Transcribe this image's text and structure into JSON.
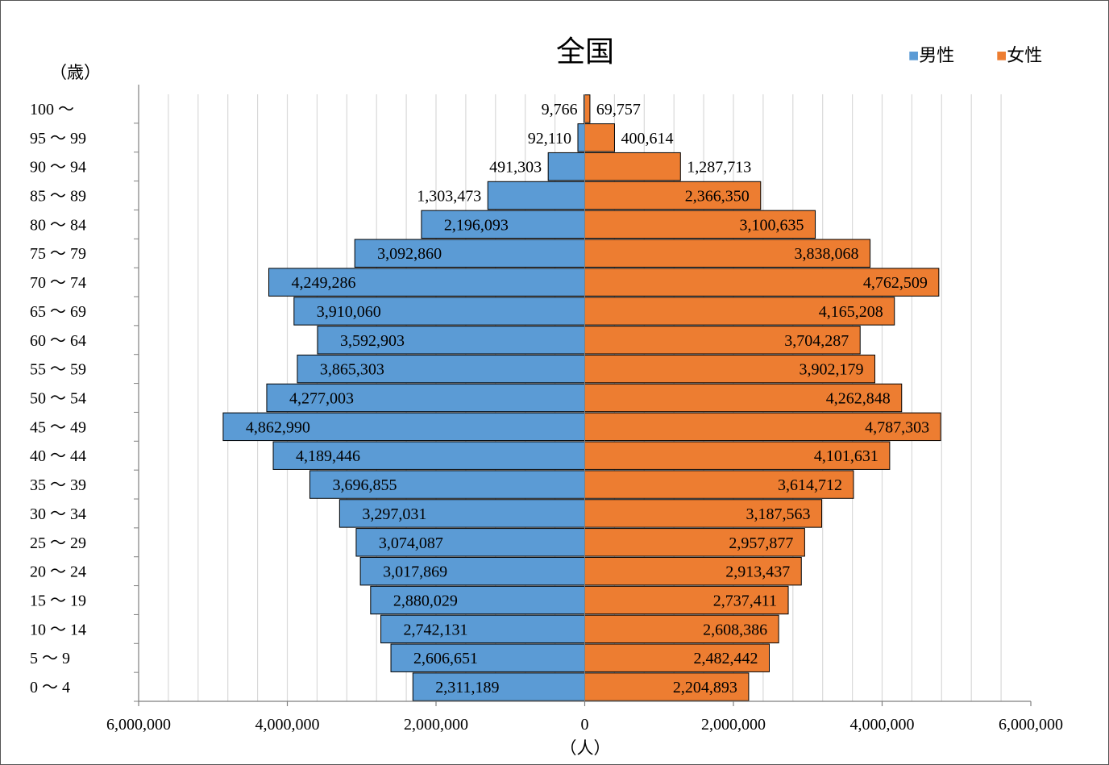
{
  "chart_data": {
    "type": "bar",
    "orientation": "horizontal",
    "layout": "population-pyramid",
    "title": "全国",
    "y_unit_label": "（歳）",
    "x_unit_label": "（人）",
    "xlim": [
      -6000000,
      6000000
    ],
    "x_ticks": [
      -6000000,
      -4000000,
      -2000000,
      0,
      2000000,
      4000000,
      6000000
    ],
    "x_tick_labels": [
      "6,000,000",
      "4,000,000",
      "2,000,000",
      "0",
      "2,000,000",
      "4,000,000",
      "6,000,000"
    ],
    "minor_grid_step": 400000,
    "grid": true,
    "legend_position": "top-right",
    "categories": [
      "0 ～ 4",
      "5 ～ 9",
      "10 ～ 14",
      "15 ～ 19",
      "20 ～ 24",
      "25 ～ 29",
      "30 ～ 34",
      "35 ～ 39",
      "40 ～ 44",
      "45 ～ 49",
      "50 ～ 54",
      "55 ～ 59",
      "60 ～ 64",
      "65 ～ 69",
      "70 ～ 74",
      "75 ～ 79",
      "80 ～ 84",
      "85 ～ 89",
      "90 ～ 94",
      "95 ～ 99",
      "100 ～"
    ],
    "series": [
      {
        "name": "男性",
        "legend_label": "■男性",
        "side": "left",
        "color": "#5b9bd5",
        "values": [
          2311189,
          2606651,
          2742131,
          2880029,
          3017869,
          3074087,
          3297031,
          3696855,
          4189446,
          4862990,
          4277003,
          3865303,
          3592903,
          3910060,
          4249286,
          3092860,
          2196093,
          1303473,
          491303,
          92110,
          9766
        ],
        "labels": [
          "2,311,189",
          "2,606,651",
          "2,742,131",
          "2,880,029",
          "3,017,869",
          "3,074,087",
          "3,297,031",
          "3,696,855",
          "4,189,446",
          "4,862,990",
          "4,277,003",
          "3,865,303",
          "3,592,903",
          "3,910,060",
          "4,249,286",
          "3,092,860",
          "2,196,093",
          "1,303,473",
          "491,303",
          "92,110",
          "9,766"
        ]
      },
      {
        "name": "女性",
        "legend_label": "■女性",
        "side": "right",
        "color": "#ed7d31",
        "values": [
          2204893,
          2482442,
          2608386,
          2737411,
          2913437,
          2957877,
          3187563,
          3614712,
          4101631,
          4787303,
          4262848,
          3902179,
          3704287,
          4165208,
          4762509,
          3838068,
          3100635,
          2366350,
          1287713,
          400614,
          69757
        ],
        "labels": [
          "2,204,893",
          "2,482,442",
          "2,608,386",
          "2,737,411",
          "2,913,437",
          "2,957,877",
          "3,187,563",
          "3,614,712",
          "4,101,631",
          "4,787,303",
          "4,262,848",
          "3,902,179",
          "3,704,287",
          "4,165,208",
          "4,762,509",
          "3,838,068",
          "3,100,635",
          "2,366,350",
          "1,287,713",
          "400,614",
          "69,757"
        ]
      }
    ]
  }
}
